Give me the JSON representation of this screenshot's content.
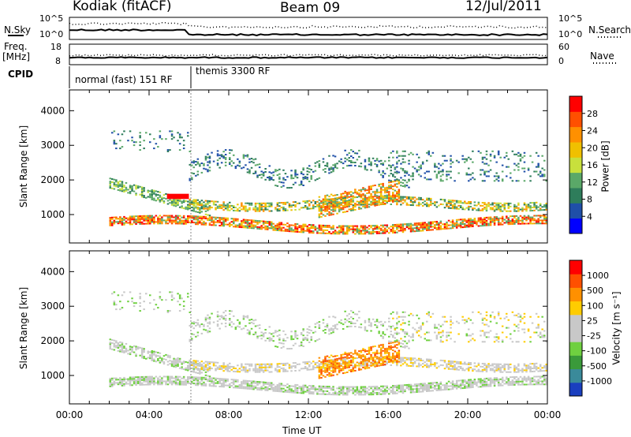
{
  "header": {
    "station": "Kodiak (fitACF)",
    "beam": "Beam 09",
    "date": "12/Jul/2011"
  },
  "top_panels": {
    "nsky_label": "N.Sky",
    "nsearch_label": "N.Search",
    "noise_ticks": [
      "10^5",
      "10^0"
    ],
    "freq_label_1": "Freq.",
    "freq_label_2": "[MHz]",
    "freq_ticks": [
      "18",
      "8"
    ],
    "nave_label": "Nave",
    "nave_ticks": [
      "60",
      "0"
    ],
    "cpid_label": "CPID",
    "cpid_segments": [
      "normal (fast) 151 RF",
      "themis 3300 RF"
    ]
  },
  "chart_data": [
    {
      "type": "heatmap",
      "panel": "power",
      "ylabel": "Slant Range [km]",
      "xlabel": "",
      "x_ticks": [
        "00:00",
        "04:00",
        "08:00",
        "12:00",
        "16:00",
        "20:00",
        "00:00"
      ],
      "y_ticks": [
        1000,
        2000,
        3000,
        4000
      ],
      "ylim": [
        180,
        4600
      ],
      "xlim_hours": [
        0,
        24
      ],
      "colorbar": {
        "label": "Power [dB]",
        "ticks": [
          "28",
          "24",
          "20",
          "16",
          "12",
          "8",
          "4"
        ],
        "colors": [
          "#0000ff",
          "#1f4fa8",
          "#2e7d5b",
          "#5aa868",
          "#c8e03c",
          "#f0c000",
          "#ff9000",
          "#ff5000",
          "#ff0000"
        ]
      }
    },
    {
      "type": "heatmap",
      "panel": "velocity",
      "ylabel": "Slant Range [km]",
      "xlabel": "Time UT",
      "x_ticks": [
        "00:00",
        "04:00",
        "08:00",
        "12:00",
        "16:00",
        "20:00",
        "00:00"
      ],
      "y_ticks": [
        1000,
        2000,
        3000,
        4000
      ],
      "ylim": [
        180,
        4600
      ],
      "xlim_hours": [
        0,
        24
      ],
      "colorbar": {
        "label": "Velocity [m s⁻¹]",
        "ticks": [
          "1000",
          "500",
          "100",
          "25",
          "-25",
          "-100",
          "-500",
          "-1000"
        ],
        "colors": [
          "#1a3fbf",
          "#3a8a9a",
          "#3a9a3a",
          "#6fd040",
          "#c8c8c8",
          "#c8c8c8",
          "#ffcc00",
          "#ff9000",
          "#ff5000",
          "#ff0000"
        ]
      }
    }
  ]
}
